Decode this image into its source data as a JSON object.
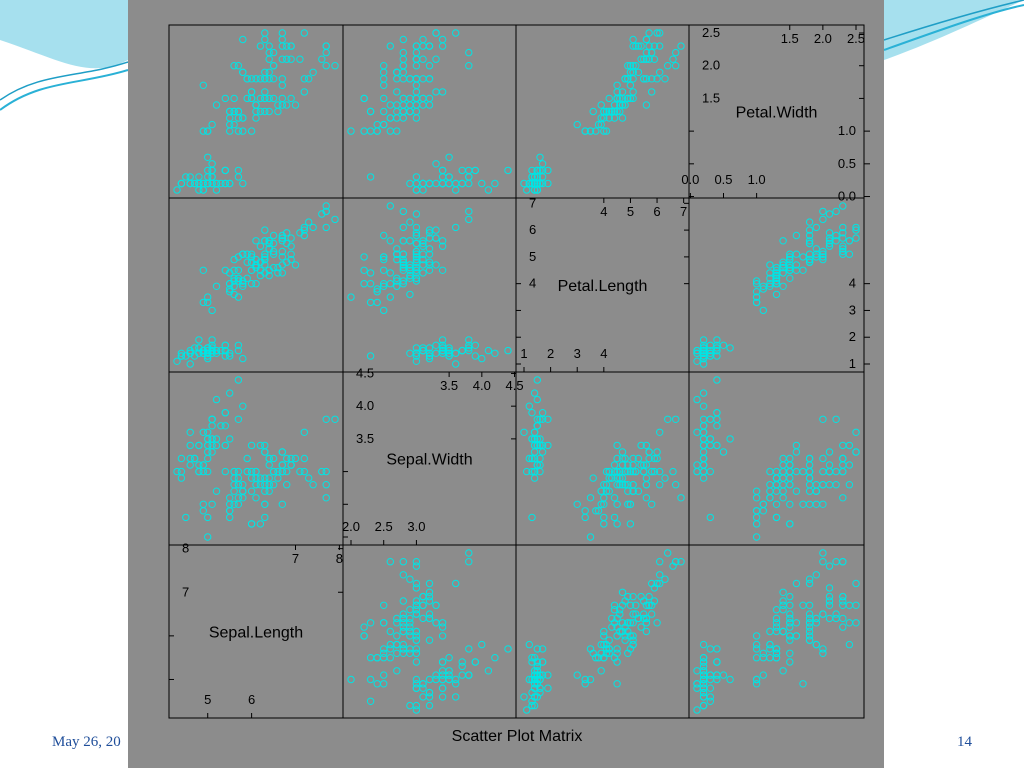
{
  "slide": {
    "date": "May 26, 20",
    "page_number": "14"
  },
  "colors": {
    "panel_bg": "#8c8c8c",
    "point": "#00e5e5",
    "frame": "#000000",
    "deco_blue": "#2ab1d6"
  },
  "chart_data": {
    "type": "scatter",
    "title": "Scatter Plot Matrix",
    "variables": [
      {
        "name": "Sepal.Length",
        "range": [
          4.3,
          7.9
        ],
        "ticks_lo": [
          5,
          6
        ],
        "ticks_hi": [
          7,
          8
        ]
      },
      {
        "name": "Sepal.Width",
        "range": [
          2.0,
          4.4
        ],
        "ticks_lo": [
          2.0,
          2.5,
          3.0
        ],
        "ticks_hi": [
          3.5,
          4.0,
          4.5
        ],
        "label_ticks_lo": [
          "2.0",
          "2.5",
          "3.0"
        ],
        "label_ticks_hi": [
          "3.5",
          "4.0",
          "4.5"
        ],
        "side_ticks_lo": [
          "2.0",
          "2.5",
          "3.0"
        ],
        "side_ticks_hi": [
          "3.5",
          "4.0",
          "4.5"
        ]
      },
      {
        "name": "Petal.Length",
        "range": [
          1.0,
          6.9
        ],
        "ticks_lo": [
          1,
          2,
          3,
          4
        ],
        "ticks_hi": [
          4,
          5,
          6,
          7
        ]
      },
      {
        "name": "Petal.Width",
        "range": [
          0.1,
          2.5
        ],
        "ticks_lo": [
          0.0,
          0.5,
          1.0
        ],
        "ticks_hi": [
          1.5,
          2.0,
          2.5
        ],
        "label_ticks_lo": [
          "0.0",
          "0.5",
          "1.0"
        ],
        "label_ticks_hi": [
          "1.5",
          "2.0",
          "2.5"
        ]
      }
    ],
    "grid": false,
    "legend": "none",
    "points": [
      [
        5.1,
        3.5,
        1.4,
        0.2
      ],
      [
        4.9,
        3.0,
        1.4,
        0.2
      ],
      [
        4.7,
        3.2,
        1.3,
        0.2
      ],
      [
        4.6,
        3.1,
        1.5,
        0.2
      ],
      [
        5.0,
        3.6,
        1.4,
        0.2
      ],
      [
        5.4,
        3.9,
        1.7,
        0.4
      ],
      [
        4.6,
        3.4,
        1.4,
        0.3
      ],
      [
        5.0,
        3.4,
        1.5,
        0.2
      ],
      [
        4.4,
        2.9,
        1.4,
        0.2
      ],
      [
        4.9,
        3.1,
        1.5,
        0.1
      ],
      [
        5.4,
        3.7,
        1.5,
        0.2
      ],
      [
        4.8,
        3.4,
        1.6,
        0.2
      ],
      [
        4.8,
        3.0,
        1.4,
        0.1
      ],
      [
        4.3,
        3.0,
        1.1,
        0.1
      ],
      [
        5.8,
        4.0,
        1.2,
        0.2
      ],
      [
        5.7,
        4.4,
        1.5,
        0.4
      ],
      [
        5.4,
        3.9,
        1.3,
        0.4
      ],
      [
        5.1,
        3.5,
        1.4,
        0.3
      ],
      [
        5.7,
        3.8,
        1.7,
        0.3
      ],
      [
        5.1,
        3.8,
        1.5,
        0.3
      ],
      [
        5.4,
        3.4,
        1.7,
        0.2
      ],
      [
        5.1,
        3.7,
        1.5,
        0.4
      ],
      [
        4.6,
        3.6,
        1.0,
        0.2
      ],
      [
        5.1,
        3.3,
        1.7,
        0.5
      ],
      [
        4.8,
        3.4,
        1.9,
        0.2
      ],
      [
        5.0,
        3.0,
        1.6,
        0.2
      ],
      [
        5.0,
        3.4,
        1.6,
        0.4
      ],
      [
        5.2,
        3.5,
        1.5,
        0.2
      ],
      [
        5.2,
        3.4,
        1.4,
        0.2
      ],
      [
        4.7,
        3.2,
        1.6,
        0.2
      ],
      [
        4.8,
        3.1,
        1.6,
        0.2
      ],
      [
        5.4,
        3.4,
        1.5,
        0.4
      ],
      [
        5.2,
        4.1,
        1.5,
        0.1
      ],
      [
        5.5,
        4.2,
        1.4,
        0.2
      ],
      [
        4.9,
        3.1,
        1.5,
        0.2
      ],
      [
        5.0,
        3.2,
        1.2,
        0.2
      ],
      [
        5.5,
        3.5,
        1.3,
        0.2
      ],
      [
        4.9,
        3.6,
        1.4,
        0.1
      ],
      [
        4.4,
        3.0,
        1.3,
        0.2
      ],
      [
        5.1,
        3.4,
        1.5,
        0.2
      ],
      [
        5.0,
        3.5,
        1.3,
        0.3
      ],
      [
        4.5,
        2.3,
        1.3,
        0.3
      ],
      [
        4.4,
        3.2,
        1.3,
        0.2
      ],
      [
        5.0,
        3.5,
        1.6,
        0.6
      ],
      [
        5.1,
        3.8,
        1.9,
        0.4
      ],
      [
        4.8,
        3.0,
        1.4,
        0.3
      ],
      [
        5.1,
        3.8,
        1.6,
        0.2
      ],
      [
        4.6,
        3.2,
        1.4,
        0.2
      ],
      [
        5.3,
        3.7,
        1.5,
        0.2
      ],
      [
        5.0,
        3.3,
        1.4,
        0.2
      ],
      [
        7.0,
        3.2,
        4.7,
        1.4
      ],
      [
        6.4,
        3.2,
        4.5,
        1.5
      ],
      [
        6.9,
        3.1,
        4.9,
        1.5
      ],
      [
        5.5,
        2.3,
        4.0,
        1.3
      ],
      [
        6.5,
        2.8,
        4.6,
        1.5
      ],
      [
        5.7,
        2.8,
        4.5,
        1.3
      ],
      [
        6.3,
        3.3,
        4.7,
        1.6
      ],
      [
        4.9,
        2.4,
        3.3,
        1.0
      ],
      [
        6.6,
        2.9,
        4.6,
        1.3
      ],
      [
        5.2,
        2.7,
        3.9,
        1.4
      ],
      [
        5.0,
        2.0,
        3.5,
        1.0
      ],
      [
        5.9,
        3.0,
        4.2,
        1.5
      ],
      [
        6.0,
        2.2,
        4.0,
        1.0
      ],
      [
        6.1,
        2.9,
        4.7,
        1.4
      ],
      [
        5.6,
        2.9,
        3.6,
        1.3
      ],
      [
        6.7,
        3.1,
        4.4,
        1.4
      ],
      [
        5.6,
        3.0,
        4.5,
        1.5
      ],
      [
        5.8,
        2.7,
        4.1,
        1.0
      ],
      [
        6.2,
        2.2,
        4.5,
        1.5
      ],
      [
        5.6,
        2.5,
        3.9,
        1.1
      ],
      [
        5.9,
        3.2,
        4.8,
        1.8
      ],
      [
        6.1,
        2.8,
        4.0,
        1.3
      ],
      [
        6.3,
        2.5,
        4.9,
        1.5
      ],
      [
        6.1,
        2.8,
        4.7,
        1.2
      ],
      [
        6.4,
        2.9,
        4.3,
        1.3
      ],
      [
        6.6,
        3.0,
        4.4,
        1.4
      ],
      [
        6.8,
        2.8,
        4.8,
        1.4
      ],
      [
        6.7,
        3.0,
        5.0,
        1.7
      ],
      [
        6.0,
        2.9,
        4.5,
        1.5
      ],
      [
        5.7,
        2.6,
        3.5,
        1.0
      ],
      [
        5.5,
        2.4,
        3.8,
        1.1
      ],
      [
        5.5,
        2.4,
        3.7,
        1.0
      ],
      [
        5.8,
        2.7,
        3.9,
        1.2
      ],
      [
        6.0,
        2.7,
        5.1,
        1.6
      ],
      [
        5.4,
        3.0,
        4.5,
        1.5
      ],
      [
        6.0,
        3.4,
        4.5,
        1.6
      ],
      [
        6.7,
        3.1,
        4.7,
        1.5
      ],
      [
        6.3,
        2.3,
        4.4,
        1.3
      ],
      [
        5.6,
        3.0,
        4.1,
        1.3
      ],
      [
        5.5,
        2.5,
        4.0,
        1.3
      ],
      [
        5.5,
        2.6,
        4.4,
        1.2
      ],
      [
        6.1,
        3.0,
        4.6,
        1.4
      ],
      [
        5.8,
        2.6,
        4.0,
        1.2
      ],
      [
        5.0,
        2.3,
        3.3,
        1.0
      ],
      [
        5.6,
        2.7,
        4.2,
        1.3
      ],
      [
        5.7,
        3.0,
        4.2,
        1.2
      ],
      [
        5.7,
        2.9,
        4.2,
        1.3
      ],
      [
        6.2,
        2.9,
        4.3,
        1.3
      ],
      [
        5.1,
        2.5,
        3.0,
        1.1
      ],
      [
        5.7,
        2.8,
        4.1,
        1.3
      ],
      [
        6.3,
        3.3,
        6.0,
        2.5
      ],
      [
        5.8,
        2.7,
        5.1,
        1.9
      ],
      [
        7.1,
        3.0,
        5.9,
        2.1
      ],
      [
        6.3,
        2.9,
        5.6,
        1.8
      ],
      [
        6.5,
        3.0,
        5.8,
        2.2
      ],
      [
        7.6,
        3.0,
        6.6,
        2.1
      ],
      [
        4.9,
        2.5,
        4.5,
        1.7
      ],
      [
        7.3,
        2.9,
        6.3,
        1.8
      ],
      [
        6.7,
        2.5,
        5.8,
        1.8
      ],
      [
        7.2,
        3.6,
        6.1,
        2.5
      ],
      [
        6.5,
        3.2,
        5.1,
        2.0
      ],
      [
        6.4,
        2.7,
        5.3,
        1.9
      ],
      [
        6.8,
        3.0,
        5.5,
        2.1
      ],
      [
        5.7,
        2.5,
        5.0,
        2.0
      ],
      [
        5.8,
        2.8,
        5.1,
        2.4
      ],
      [
        6.4,
        3.2,
        5.3,
        2.3
      ],
      [
        6.5,
        3.0,
        5.5,
        1.8
      ],
      [
        7.7,
        3.8,
        6.7,
        2.2
      ],
      [
        7.7,
        2.6,
        6.9,
        2.3
      ],
      [
        6.0,
        2.2,
        5.0,
        1.5
      ],
      [
        6.9,
        3.2,
        5.7,
        2.3
      ],
      [
        5.6,
        2.8,
        4.9,
        2.0
      ],
      [
        7.7,
        2.8,
        6.7,
        2.0
      ],
      [
        6.3,
        2.7,
        4.9,
        1.8
      ],
      [
        6.7,
        3.3,
        5.7,
        2.1
      ],
      [
        7.2,
        3.2,
        6.0,
        1.8
      ],
      [
        6.2,
        2.8,
        4.8,
        1.8
      ],
      [
        6.1,
        3.0,
        4.9,
        1.8
      ],
      [
        6.4,
        2.8,
        5.6,
        2.1
      ],
      [
        7.2,
        3.0,
        5.8,
        1.6
      ],
      [
        7.4,
        2.8,
        6.1,
        1.9
      ],
      [
        7.9,
        3.8,
        6.4,
        2.0
      ],
      [
        6.4,
        2.8,
        5.6,
        2.2
      ],
      [
        6.3,
        2.8,
        5.1,
        1.5
      ],
      [
        6.1,
        2.6,
        5.6,
        1.4
      ],
      [
        7.7,
        3.0,
        6.1,
        2.3
      ],
      [
        6.3,
        3.4,
        5.6,
        2.4
      ],
      [
        6.4,
        3.1,
        5.5,
        1.8
      ],
      [
        6.0,
        3.0,
        4.8,
        1.8
      ],
      [
        6.9,
        3.1,
        5.4,
        2.1
      ],
      [
        6.7,
        3.1,
        5.6,
        2.4
      ],
      [
        6.9,
        3.1,
        5.1,
        2.3
      ],
      [
        5.8,
        2.7,
        5.1,
        1.9
      ],
      [
        6.8,
        3.2,
        5.9,
        2.3
      ],
      [
        6.7,
        3.3,
        5.7,
        2.5
      ],
      [
        6.7,
        3.0,
        5.2,
        2.3
      ],
      [
        6.3,
        2.5,
        5.0,
        1.9
      ],
      [
        6.5,
        3.0,
        5.2,
        2.0
      ],
      [
        6.2,
        3.4,
        5.4,
        2.3
      ],
      [
        5.9,
        3.0,
        5.1,
        1.8
      ]
    ]
  }
}
